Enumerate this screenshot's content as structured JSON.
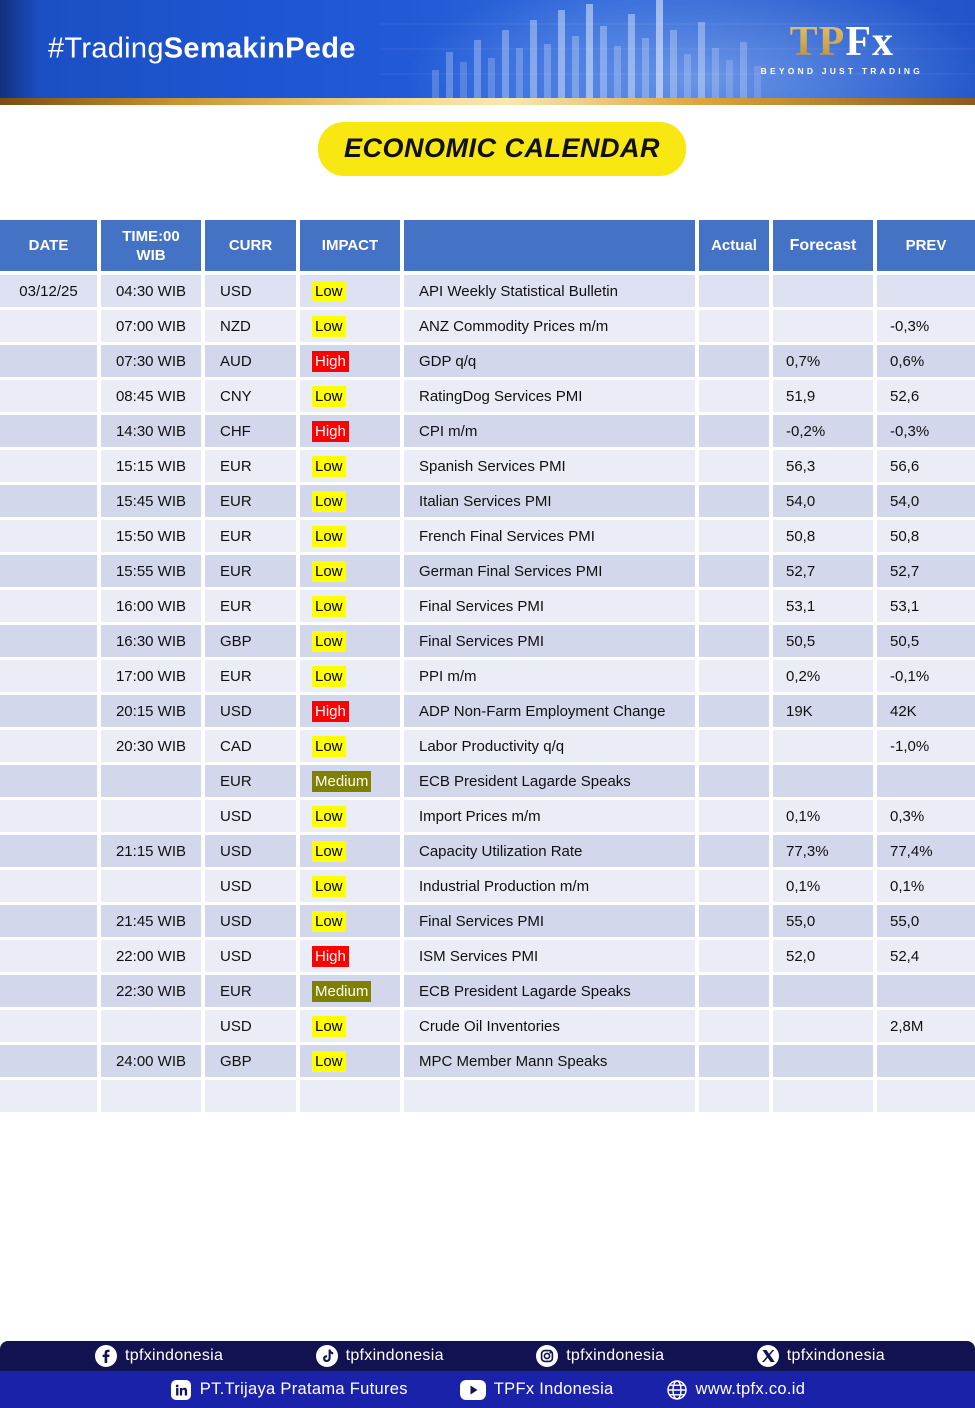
{
  "banner": {
    "hashtag_regular": "#Trading",
    "hashtag_bold": "SemakinPede",
    "logo_gold": "TP",
    "logo_white": "Fx",
    "logo_tagline": "BEYOND JUST TRADING"
  },
  "title": "ECONOMIC CALENDAR",
  "table": {
    "columns": [
      "DATE",
      "TIME:00 WIB",
      "CURR",
      "IMPACT",
      "",
      "Actual",
      "Forecast",
      "PREV"
    ],
    "rows": [
      {
        "date": "03/12/25",
        "time": "04:30 WIB",
        "curr": "USD",
        "impact": "Low",
        "event": "API Weekly Statistical Bulletin",
        "actual": "",
        "forecast": "",
        "prev": ""
      },
      {
        "date": "",
        "time": "07:00 WIB",
        "curr": "NZD",
        "impact": "Low",
        "event": "ANZ Commodity Prices m/m",
        "actual": "",
        "forecast": "",
        "prev": "-0,3%"
      },
      {
        "date": "",
        "time": "07:30 WIB",
        "curr": "AUD",
        "impact": "High",
        "event": "GDP q/q",
        "actual": "",
        "forecast": "0,7%",
        "prev": "0,6%"
      },
      {
        "date": "",
        "time": "08:45 WIB",
        "curr": "CNY",
        "impact": "Low",
        "event": "RatingDog Services PMI",
        "actual": "",
        "forecast": "51,9",
        "prev": "52,6"
      },
      {
        "date": "",
        "time": "14:30 WIB",
        "curr": "CHF",
        "impact": "High",
        "event": "CPI m/m",
        "actual": "",
        "forecast": "-0,2%",
        "prev": "-0,3%"
      },
      {
        "date": "",
        "time": "15:15 WIB",
        "curr": "EUR",
        "impact": "Low",
        "event": "Spanish Services PMI",
        "actual": "",
        "forecast": "56,3",
        "prev": "56,6"
      },
      {
        "date": "",
        "time": "15:45 WIB",
        "curr": "EUR",
        "impact": "Low",
        "event": "Italian Services PMI",
        "actual": "",
        "forecast": "54,0",
        "prev": "54,0"
      },
      {
        "date": "",
        "time": "15:50 WIB",
        "curr": "EUR",
        "impact": "Low",
        "event": "French Final Services PMI",
        "actual": "",
        "forecast": "50,8",
        "prev": "50,8"
      },
      {
        "date": "",
        "time": "15:55 WIB",
        "curr": "EUR",
        "impact": "Low",
        "event": "German Final Services PMI",
        "actual": "",
        "forecast": "52,7",
        "prev": "52,7"
      },
      {
        "date": "",
        "time": "16:00 WIB",
        "curr": "EUR",
        "impact": "Low",
        "event": "Final Services PMI",
        "actual": "",
        "forecast": "53,1",
        "prev": "53,1"
      },
      {
        "date": "",
        "time": "16:30 WIB",
        "curr": "GBP",
        "impact": "Low",
        "event": "Final Services PMI",
        "actual": "",
        "forecast": "50,5",
        "prev": "50,5"
      },
      {
        "date": "",
        "time": "17:00 WIB",
        "curr": "EUR",
        "impact": "Low",
        "event": "PPI m/m",
        "actual": "",
        "forecast": "0,2%",
        "prev": "-0,1%"
      },
      {
        "date": "",
        "time": "20:15 WIB",
        "curr": "USD",
        "impact": "High",
        "event": "ADP Non-Farm Employment Change",
        "actual": "",
        "forecast": "19K",
        "prev": "42K"
      },
      {
        "date": "",
        "time": "20:30 WIB",
        "curr": "CAD",
        "impact": "Low",
        "event": "Labor Productivity q/q",
        "actual": "",
        "forecast": "",
        "prev": "-1,0%"
      },
      {
        "date": "",
        "time": "",
        "curr": "EUR",
        "impact": "Medium",
        "event": "ECB President Lagarde Speaks",
        "actual": "",
        "forecast": "",
        "prev": ""
      },
      {
        "date": "",
        "time": "",
        "curr": "USD",
        "impact": "Low",
        "event": "Import Prices m/m",
        "actual": "",
        "forecast": "0,1%",
        "prev": "0,3%"
      },
      {
        "date": "",
        "time": "21:15 WIB",
        "curr": "USD",
        "impact": "Low",
        "event": "Capacity Utilization Rate",
        "actual": "",
        "forecast": "77,3%",
        "prev": "77,4%"
      },
      {
        "date": "",
        "time": "",
        "curr": "USD",
        "impact": "Low",
        "event": "Industrial Production m/m",
        "actual": "",
        "forecast": "0,1%",
        "prev": "0,1%"
      },
      {
        "date": "",
        "time": "21:45 WIB",
        "curr": "USD",
        "impact": "Low",
        "event": "Final Services PMI",
        "actual": "",
        "forecast": "55,0",
        "prev": "55,0"
      },
      {
        "date": "",
        "time": "22:00 WIB",
        "curr": "USD",
        "impact": "High",
        "event": "ISM Services PMI",
        "actual": "",
        "forecast": "52,0",
        "prev": "52,4"
      },
      {
        "date": "",
        "time": "22:30 WIB",
        "curr": "EUR",
        "impact": "Medium",
        "event": "ECB President Lagarde Speaks",
        "actual": "",
        "forecast": "",
        "prev": ""
      },
      {
        "date": "",
        "time": "",
        "curr": "USD",
        "impact": "Low",
        "event": "Crude Oil Inventories",
        "actual": "",
        "forecast": "",
        "prev": "2,8M"
      },
      {
        "date": "",
        "time": "24:00 WIB",
        "curr": "GBP",
        "impact": "Low",
        "event": "MPC Member Mann Speaks",
        "actual": "",
        "forecast": "",
        "prev": ""
      },
      {
        "date": "",
        "time": "",
        "curr": "",
        "impact": "",
        "event": "",
        "actual": "",
        "forecast": "",
        "prev": ""
      }
    ]
  },
  "impact_styles": {
    "Low": {
      "bg": "#ffff00",
      "text": "#000000"
    },
    "Medium": {
      "bg": "#7f7f00",
      "text": "#ffffff"
    },
    "High": {
      "bg": "#ff0000",
      "text": "#ffffff"
    }
  },
  "colors": {
    "header_blue": "#4472c4",
    "row_dark": "#d2d7eb",
    "row_light": "#eaecf6",
    "banner_blue": "#2058d6",
    "title_yellow": "#f8e711",
    "footer_navy": "#131250",
    "footer_blue": "#1b22aa",
    "gold": "#dca43c"
  },
  "footer": {
    "row1": [
      {
        "icon": "facebook-icon",
        "label": "tpfxindonesia"
      },
      {
        "icon": "tiktok-icon",
        "label": "tpfxindonesia"
      },
      {
        "icon": "instagram-icon",
        "label": "tpfxindonesia"
      },
      {
        "icon": "x-icon",
        "label": "tpfxindonesia"
      }
    ],
    "row2": [
      {
        "icon": "linkedin-icon",
        "label": "PT.Trijaya Pratama Futures"
      },
      {
        "icon": "youtube-icon",
        "label": "TPFx Indonesia"
      },
      {
        "icon": "globe-icon",
        "label": "www.tpfx.co.id"
      }
    ]
  }
}
